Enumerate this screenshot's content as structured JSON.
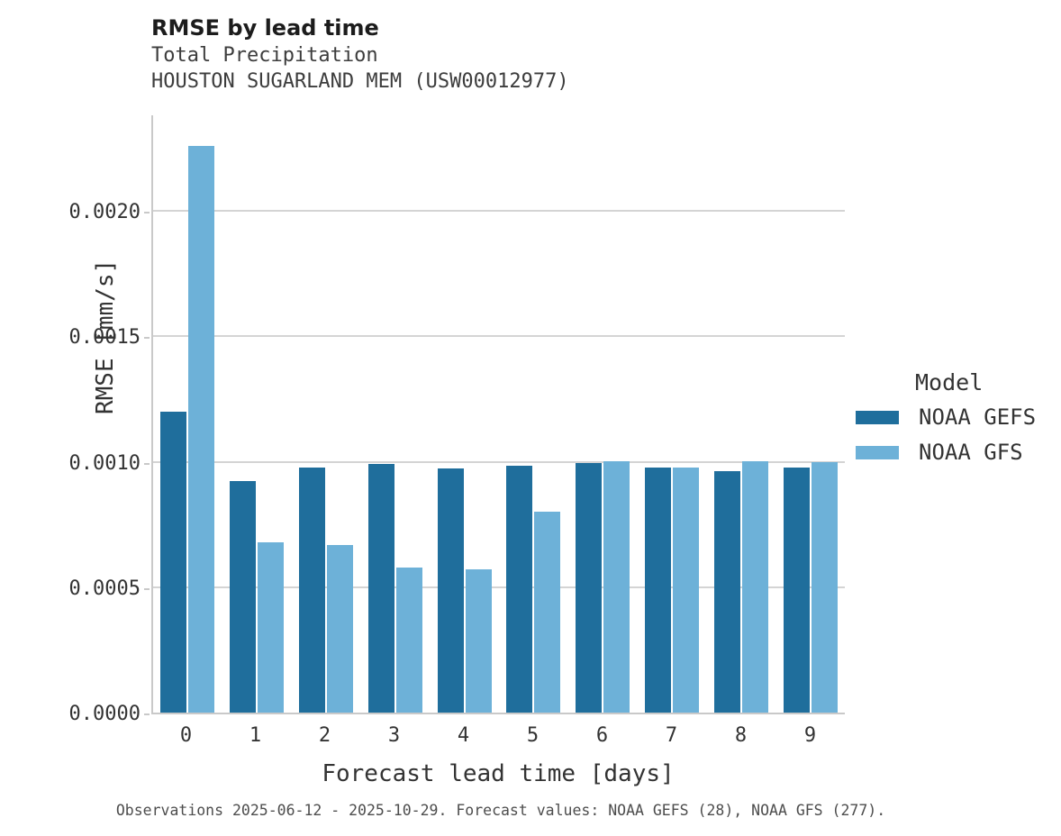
{
  "header": {
    "title": "RMSE by lead time",
    "subtitle_line1": "Total Precipitation",
    "subtitle_line2": "HOUSTON SUGARLAND MEM (USW00012977)"
  },
  "legend": {
    "title": "Model",
    "items": [
      {
        "label": "NOAA GEFS",
        "color": "#1f6e9c"
      },
      {
        "label": "NOAA GFS",
        "color": "#6db1d8"
      }
    ]
  },
  "caption": "Observations 2025-06-12 - 2025-10-29. Forecast values: NOAA GEFS (28), NOAA GFS (277).",
  "chart_data": {
    "type": "bar",
    "title": "RMSE by lead time",
    "subtitle": [
      "Total Precipitation",
      "HOUSTON SUGARLAND MEM (USW00012977)"
    ],
    "xlabel": "Forecast lead time [days]",
    "ylabel": "RMSE [mm/s]",
    "categories": [
      "0",
      "1",
      "2",
      "3",
      "4",
      "5",
      "6",
      "7",
      "8",
      "9"
    ],
    "series": [
      {
        "name": "NOAA GEFS",
        "color": "#1f6e9c",
        "values": [
          0.0012,
          0.000925,
          0.000978,
          0.000993,
          0.000972,
          0.000983,
          0.000995,
          0.000977,
          0.000962,
          0.000979
        ]
      },
      {
        "name": "NOAA GFS",
        "color": "#6db1d8",
        "values": [
          0.00226,
          0.00068,
          0.000667,
          0.000577,
          0.000571,
          0.0008,
          0.001003,
          0.000977,
          0.001003,
          0.001
        ]
      }
    ],
    "yticks": [
      0.0,
      0.0005,
      0.001,
      0.0015,
      0.002
    ],
    "ytick_labels": [
      "0.0000",
      "0.0005",
      "0.0010",
      "0.0015",
      "0.0020"
    ],
    "ylim": [
      0,
      0.002382
    ],
    "grid": "horizontal",
    "grid_color": "#d4d4d4",
    "spine_color": "#c9c9c9",
    "legend_position": "right",
    "legend_title": "Model"
  }
}
